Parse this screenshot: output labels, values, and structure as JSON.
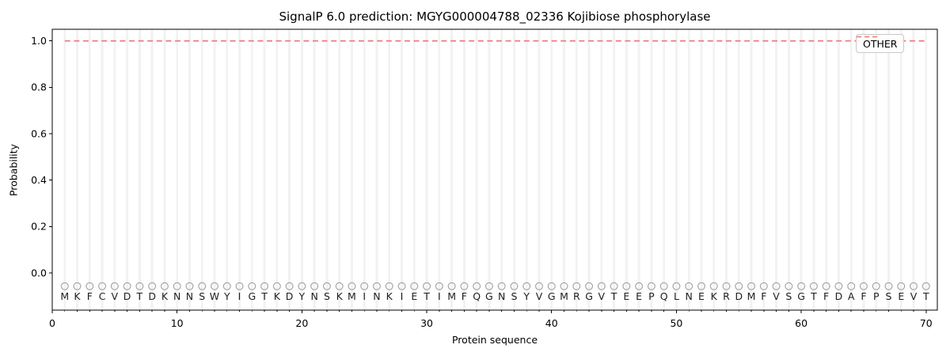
{
  "chart_data": {
    "type": "line",
    "title": "SignalP 6.0 prediction: MGYG000004788_02336 Kojibiose phosphorylase",
    "xlabel": "Protein sequence",
    "ylabel": "Probability",
    "xlim": [
      0,
      70.9
    ],
    "ylim": [
      -0.16,
      1.05
    ],
    "xticks": [
      0,
      10,
      20,
      30,
      40,
      50,
      60,
      70
    ],
    "yticks": [
      0.0,
      0.2,
      0.4,
      0.6,
      0.8,
      1.0
    ],
    "grid": true,
    "legend": {
      "position": "upper right",
      "entries": [
        {
          "label": "OTHER",
          "color": "#f08080",
          "style": "dashed"
        }
      ]
    },
    "sequence": "MKFCVDTDKNNSWYIGTKDYNSKMINKIETIMFQGNSYVGMRGVTEEPQLNEKRDMFVSGTFDAFPSEVT",
    "series": [
      {
        "name": "OTHER",
        "color": "#f08080",
        "dash": true,
        "x": [
          1,
          2,
          3,
          4,
          5,
          6,
          7,
          8,
          9,
          10,
          11,
          12,
          13,
          14,
          15,
          16,
          17,
          18,
          19,
          20,
          21,
          22,
          23,
          24,
          25,
          26,
          27,
          28,
          29,
          30,
          31,
          32,
          33,
          34,
          35,
          36,
          37,
          38,
          39,
          40,
          41,
          42,
          43,
          44,
          45,
          46,
          47,
          48,
          49,
          50,
          51,
          52,
          53,
          54,
          55,
          56,
          57,
          58,
          59,
          60,
          61,
          62,
          63,
          64,
          65,
          66,
          67,
          68,
          69,
          70
        ],
        "values": [
          1.0,
          1.0,
          1.0,
          1.0,
          1.0,
          1.0,
          1.0,
          1.0,
          1.0,
          1.0,
          1.0,
          1.0,
          1.0,
          1.0,
          1.0,
          1.0,
          1.0,
          1.0,
          1.0,
          1.0,
          1.0,
          1.0,
          1.0,
          1.0,
          1.0,
          1.0,
          1.0,
          1.0,
          1.0,
          1.0,
          1.0,
          1.0,
          1.0,
          1.0,
          1.0,
          1.0,
          1.0,
          1.0,
          1.0,
          1.0,
          1.0,
          1.0,
          1.0,
          1.0,
          1.0,
          1.0,
          1.0,
          1.0,
          1.0,
          1.0,
          1.0,
          1.0,
          1.0,
          1.0,
          1.0,
          1.0,
          1.0,
          1.0,
          1.0,
          1.0,
          1.0,
          1.0,
          1.0,
          1.0,
          1.0,
          1.0,
          1.0,
          1.0,
          1.0,
          1.0
        ]
      }
    ],
    "position_markers": {
      "y": -0.057,
      "shape": "circle-outline",
      "color": "#a6a6a6"
    },
    "colors": {
      "grid": "#f2f2f2",
      "spine": "#000000",
      "letters": "#1f1f1f",
      "tick_label": "#000000"
    }
  }
}
